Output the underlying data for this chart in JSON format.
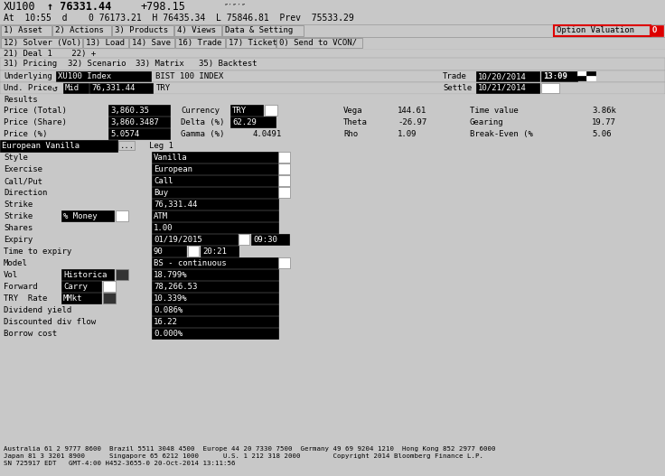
{
  "bg_color": "#c8c8c8",
  "black": "#000000",
  "white": "#ffffff",
  "footer1": "Australia 61 2 9777 8600  Brazil 5511 3048 4500  Europe 44 20 7330 7500  Germany 49 69 9204 1210  Hong Kong 852 2977 6000",
  "footer2": "Japan 81 3 3201 8900      Singapore 65 6212 1000      U.S. 1 212 318 2000        Copyright 2014 Bloomberg Finance L.P.",
  "footer3": "SN 725917 EDT   GMT-4:00 H452-3655-0 20-Oct-2014 13:11:56"
}
